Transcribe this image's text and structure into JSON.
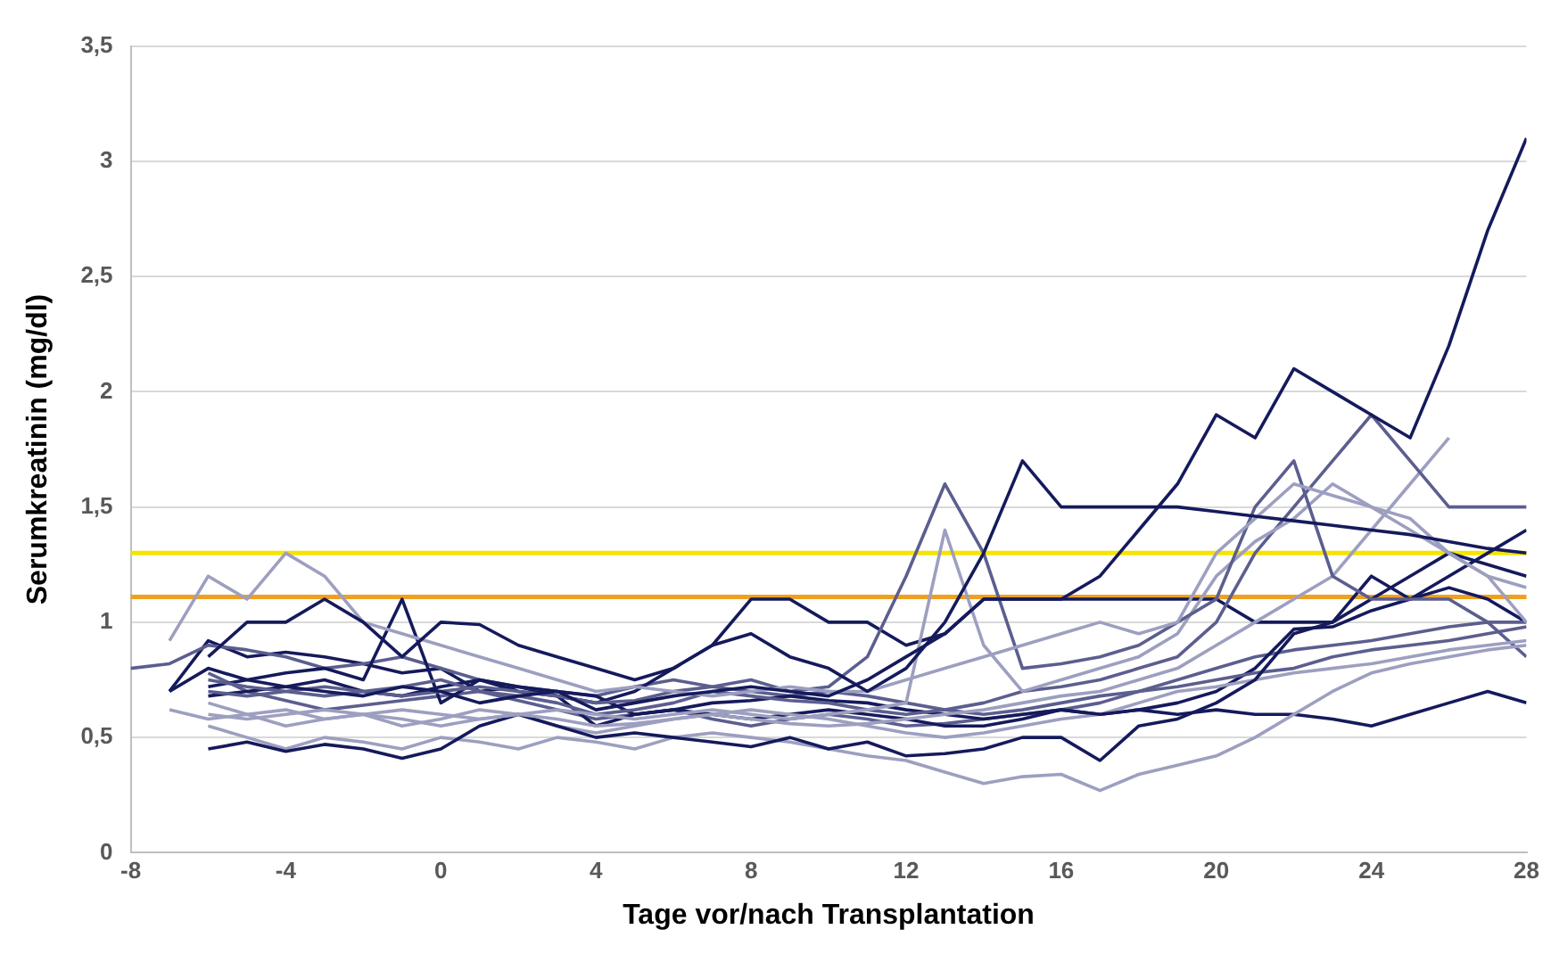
{
  "chart_data": {
    "type": "line",
    "xlabel": "Tage vor/nach Transplantation",
    "ylabel": "Serumkreatinin (mg/dl)",
    "x": [
      -8,
      -7,
      -6,
      -5,
      -4,
      -3,
      -2,
      -1,
      0,
      1,
      2,
      3,
      4,
      5,
      6,
      7,
      8,
      9,
      10,
      11,
      12,
      13,
      14,
      15,
      16,
      17,
      18,
      19,
      20,
      21,
      22,
      23,
      24,
      25,
      26,
      27,
      28
    ],
    "xlim": [
      -8,
      28
    ],
    "xticks": [
      -8,
      -4,
      0,
      4,
      8,
      12,
      16,
      20,
      24,
      28
    ],
    "ylim": [
      0,
      3.5
    ],
    "yticks": [
      0,
      {
        "value": 0.5,
        "label": "0,5"
      },
      1,
      {
        "value": 1.5,
        "label": "1,5"
      },
      2,
      {
        "value": 2.5,
        "label": "2,5"
      },
      3,
      {
        "value": 3.5,
        "label": "3,5"
      }
    ],
    "grid": "y",
    "marker": "none",
    "line_style": "solid",
    "ref_lines": [
      {
        "axis": "y",
        "value": 1.3,
        "color": "#f5e400"
      },
      {
        "axis": "y",
        "value": 1.11,
        "color": "#f0a020"
      }
    ],
    "series": [
      {
        "color": "#151a5c",
        "values": [
          null,
          0.7,
          0.8,
          0.75,
          0.72,
          0.7,
          0.68,
          0.72,
          0.7,
          0.65,
          0.68,
          0.7,
          0.62,
          0.65,
          0.68,
          0.7,
          0.72,
          0.7,
          0.68,
          0.75,
          0.85,
          0.95,
          1.1,
          1.1,
          1.1,
          1.2,
          1.4,
          1.6,
          1.9,
          1.8,
          2.1,
          2.0,
          1.9,
          1.8,
          2.2,
          2.7,
          3.1
        ]
      },
      {
        "color": "#151a5c",
        "values": [
          null,
          null,
          0.85,
          1.0,
          1.0,
          1.1,
          1.0,
          0.85,
          1.0,
          0.99,
          0.9,
          0.85,
          0.8,
          0.75,
          0.8,
          0.9,
          0.95,
          0.85,
          0.8,
          0.7,
          0.8,
          1.0,
          1.3,
          1.7,
          1.5,
          1.5,
          1.5,
          1.5,
          1.48,
          1.46,
          1.44,
          1.42,
          1.4,
          1.38,
          1.35,
          1.32,
          1.3
        ]
      },
      {
        "color": "#9d9fc0",
        "values": [
          null,
          0.92,
          1.2,
          1.1,
          1.3,
          1.2,
          1.0,
          0.95,
          0.9,
          0.85,
          0.8,
          0.75,
          0.7,
          0.72,
          0.7,
          0.68,
          0.7,
          0.72,
          0.7,
          0.7,
          0.75,
          0.8,
          0.85,
          0.9,
          0.95,
          1.0,
          0.95,
          1.0,
          1.3,
          1.45,
          1.6,
          1.55,
          1.5,
          1.4,
          1.3,
          1.2,
          1.0
        ]
      },
      {
        "color": "#5b5e8e",
        "values": [
          null,
          null,
          0.7,
          0.68,
          0.7,
          0.72,
          0.7,
          0.68,
          0.7,
          0.72,
          0.7,
          0.68,
          0.65,
          0.66,
          0.7,
          0.72,
          0.75,
          0.7,
          0.72,
          0.85,
          1.2,
          1.6,
          1.3,
          0.8,
          0.82,
          0.85,
          0.9,
          1.0,
          1.1,
          1.5,
          1.7,
          1.2,
          1.1,
          1.1,
          1.1,
          1.0,
          1.0
        ]
      },
      {
        "color": "#9d9fc0",
        "values": [
          null,
          null,
          0.65,
          0.6,
          0.62,
          0.58,
          0.6,
          0.62,
          0.6,
          0.58,
          0.6,
          0.62,
          0.6,
          0.58,
          0.6,
          0.62,
          0.6,
          0.58,
          0.6,
          0.62,
          0.65,
          1.4,
          0.9,
          0.7,
          0.75,
          0.8,
          0.85,
          0.95,
          1.2,
          1.35,
          1.45,
          1.6,
          1.5,
          1.45,
          1.3,
          1.2,
          1.15
        ]
      },
      {
        "color": "#5b5e8e",
        "values": [
          null,
          null,
          0.75,
          0.72,
          0.7,
          0.68,
          0.7,
          0.72,
          0.75,
          0.7,
          0.68,
          0.65,
          0.6,
          0.62,
          0.65,
          0.7,
          0.68,
          0.66,
          0.65,
          0.62,
          0.6,
          0.62,
          0.65,
          0.7,
          0.72,
          0.75,
          0.8,
          0.85,
          1.0,
          1.3,
          1.5,
          1.7,
          1.9,
          1.7,
          1.5,
          1.5,
          1.5
        ]
      },
      {
        "color": "#9d9fc0",
        "values": [
          null,
          null,
          0.6,
          0.58,
          0.6,
          0.62,
          0.6,
          0.58,
          0.55,
          0.58,
          0.6,
          0.58,
          0.55,
          0.56,
          0.58,
          0.6,
          0.58,
          0.56,
          0.55,
          0.56,
          0.58,
          0.6,
          0.62,
          0.65,
          0.68,
          0.7,
          0.75,
          0.8,
          0.9,
          1.0,
          1.1,
          1.2,
          1.4,
          1.6,
          1.8,
          null,
          null
        ]
      },
      {
        "color": "#151a5c",
        "values": [
          null,
          null,
          0.68,
          0.7,
          0.72,
          0.75,
          0.7,
          0.68,
          0.72,
          0.75,
          0.7,
          0.68,
          0.65,
          0.7,
          0.8,
          0.9,
          1.1,
          1.1,
          1.0,
          1.0,
          0.9,
          0.95,
          1.1,
          1.1,
          1.1,
          1.1,
          1.1,
          1.1,
          1.1,
          1.0,
          1.0,
          1.0,
          1.2,
          1.1,
          1.2,
          1.3,
          1.4
        ]
      },
      {
        "color": "#151a5c",
        "values": [
          null,
          null,
          0.45,
          0.48,
          0.44,
          0.47,
          0.45,
          0.41,
          0.45,
          0.55,
          0.6,
          0.55,
          0.5,
          0.52,
          0.5,
          0.48,
          0.46,
          0.5,
          0.45,
          0.48,
          0.42,
          0.43,
          0.45,
          0.5,
          0.5,
          0.4,
          0.55,
          0.58,
          0.65,
          0.75,
          0.95,
          1.0,
          1.1,
          1.2,
          1.3,
          1.25,
          1.2
        ]
      },
      {
        "color": "#9d9fc0",
        "values": [
          null,
          null,
          0.55,
          0.5,
          0.45,
          0.5,
          0.48,
          0.45,
          0.5,
          0.48,
          0.45,
          0.5,
          0.48,
          0.45,
          0.5,
          0.52,
          0.5,
          0.48,
          0.45,
          0.42,
          0.4,
          0.35,
          0.3,
          0.33,
          0.34,
          0.27,
          0.34,
          0.38,
          0.42,
          0.5,
          0.6,
          0.7,
          0.78,
          0.82,
          0.85,
          0.88,
          0.9
        ]
      },
      {
        "color": "#151a5c",
        "values": [
          null,
          null,
          0.72,
          0.75,
          0.78,
          0.8,
          0.75,
          1.1,
          0.65,
          0.75,
          0.72,
          0.7,
          0.68,
          0.6,
          0.62,
          0.65,
          0.66,
          0.68,
          0.66,
          0.65,
          0.62,
          0.6,
          0.58,
          0.6,
          0.62,
          0.6,
          0.62,
          0.6,
          0.62,
          0.6,
          0.6,
          0.58,
          0.55,
          0.6,
          0.65,
          0.7,
          0.65
        ]
      },
      {
        "color": "#5b5e8e",
        "values": [
          0.8,
          0.82,
          0.9,
          0.88,
          0.85,
          0.8,
          0.82,
          0.85,
          0.8,
          0.75,
          0.72,
          0.7,
          0.68,
          0.72,
          0.75,
          0.72,
          0.7,
          0.68,
          0.7,
          0.68,
          0.65,
          0.62,
          0.6,
          0.62,
          0.65,
          0.68,
          0.7,
          0.72,
          0.75,
          0.78,
          0.8,
          0.85,
          0.88,
          0.9,
          0.92,
          0.95,
          0.98
        ]
      },
      {
        "color": "#9d9fc0",
        "values": [
          null,
          0.62,
          0.58,
          0.6,
          0.55,
          0.58,
          0.6,
          0.55,
          0.58,
          0.62,
          0.6,
          0.55,
          0.52,
          0.55,
          0.58,
          0.6,
          0.62,
          0.6,
          0.58,
          0.55,
          0.52,
          0.5,
          0.52,
          0.55,
          0.58,
          0.6,
          0.65,
          0.7,
          0.72,
          0.75,
          0.78,
          0.8,
          0.82,
          0.85,
          0.88,
          0.9,
          0.92
        ]
      },
      {
        "color": "#151a5c",
        "values": [
          null,
          0.7,
          0.92,
          0.85,
          0.87,
          0.85,
          0.82,
          0.78,
          0.8,
          0.7,
          0.72,
          0.68,
          0.55,
          0.6,
          0.62,
          0.6,
          0.58,
          0.6,
          0.62,
          0.6,
          0.58,
          0.55,
          0.55,
          0.58,
          0.62,
          0.6,
          0.62,
          0.65,
          0.7,
          0.8,
          0.97,
          0.98,
          1.05,
          1.1,
          1.15,
          1.1,
          1.0
        ]
      },
      {
        "color": "#5b5e8e",
        "values": [
          null,
          null,
          0.78,
          0.7,
          0.66,
          0.62,
          0.64,
          0.66,
          0.68,
          0.7,
          0.66,
          0.62,
          0.58,
          0.6,
          0.62,
          0.58,
          0.55,
          0.58,
          0.6,
          0.58,
          0.55,
          0.56,
          0.58,
          0.6,
          0.62,
          0.65,
          0.7,
          0.75,
          0.8,
          0.85,
          0.88,
          0.9,
          0.92,
          0.95,
          0.98,
          1.0,
          0.85
        ]
      }
    ]
  }
}
